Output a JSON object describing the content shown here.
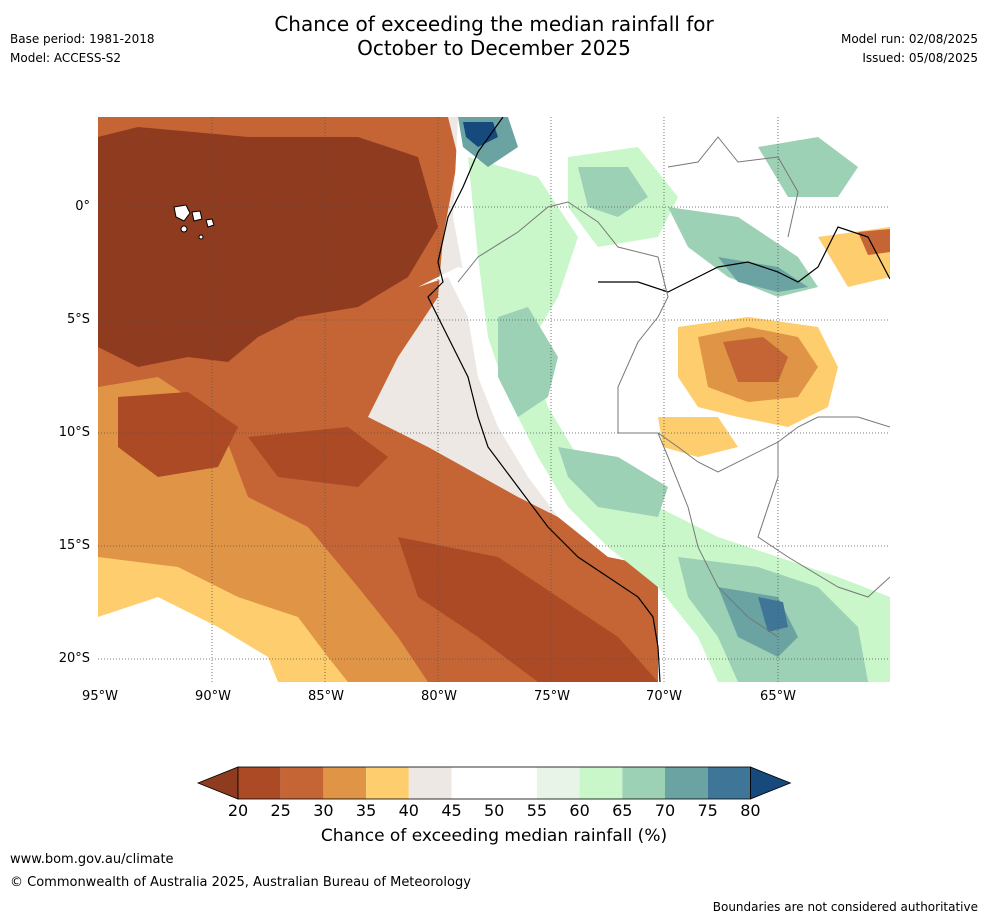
{
  "header": {
    "base_period": "Base period: 1981-2018",
    "model": "Model: ACCESS-S2",
    "title_line1": "Chance of exceeding the median rainfall for",
    "title_line2": "October to December 2025",
    "model_run": "Model run: 02/08/2025",
    "issued": "Issued: 05/08/2025"
  },
  "map": {
    "lat_labels": [
      "0°",
      "5°S",
      "10°S",
      "15°S",
      "20°S"
    ],
    "lon_labels": [
      "95°W",
      "90°W",
      "85°W",
      "80°W",
      "75°W",
      "70°W",
      "65°W"
    ]
  },
  "colorbar": {
    "ticks": [
      "20",
      "25",
      "30",
      "35",
      "40",
      "45",
      "50",
      "55",
      "60",
      "65",
      "70",
      "75",
      "80"
    ],
    "colors": [
      "#8f3b1f",
      "#ab4a25",
      "#c56434",
      "#df9446",
      "#fdcd6e",
      "#ede8e4",
      "#ffffff",
      "#ffffff",
      "#e7f4e7",
      "#c9f7c9",
      "#9cd1b6",
      "#6ba3a3",
      "#3f7596",
      "#174a7c"
    ],
    "label": "Chance of exceeding median rainfall (%)"
  },
  "footer": {
    "website": "www.bom.gov.au/climate",
    "copyright": "© Commonwealth of Australia 2025, Australian Bureau of Meteorology",
    "disclaimer": "Boundaries are not considered authoritative"
  }
}
